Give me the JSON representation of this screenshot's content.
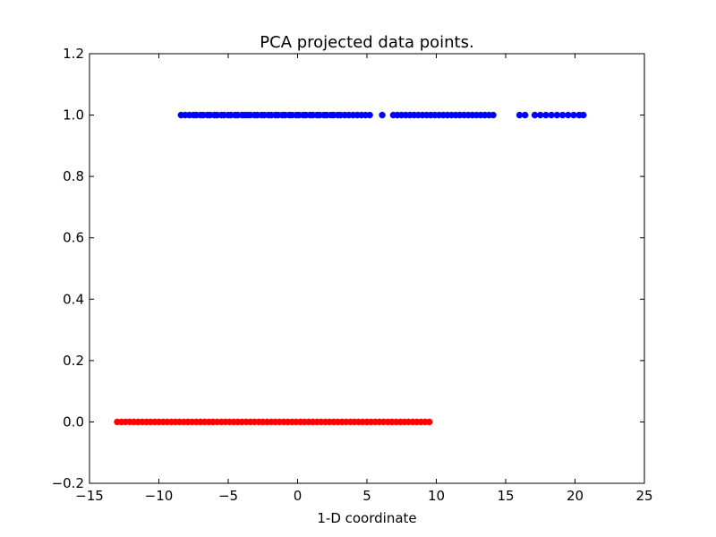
{
  "chart_data": {
    "type": "scatter",
    "title": "PCA projected data points.",
    "xlabel": "1-D coordinate",
    "ylabel": "",
    "xlim": [
      -15,
      25
    ],
    "ylim": [
      -0.2,
      1.2
    ],
    "xticks": [
      -15,
      -10,
      -5,
      0,
      5,
      10,
      15,
      20,
      25
    ],
    "xtick_labels": [
      "−15",
      "−10",
      "−5",
      "0",
      "5",
      "10",
      "15",
      "20",
      "25"
    ],
    "yticks": [
      -0.2,
      0.0,
      0.2,
      0.4,
      0.6,
      0.8,
      1.0,
      1.2
    ],
    "ytick_labels": [
      "−0.2",
      "0.0",
      "0.2",
      "0.4",
      "0.6",
      "0.8",
      "1.0",
      "1.2"
    ],
    "grid": false,
    "series": [
      {
        "color": "#0000ff",
        "y": 1.0,
        "x": [
          -8.4,
          -8.1,
          -7.8,
          -7.5,
          -7.3,
          -7.0,
          -6.8,
          -6.5,
          -6.3,
          -6.0,
          -5.8,
          -5.5,
          -5.3,
          -5.0,
          -4.8,
          -4.5,
          -4.3,
          -4.0,
          -3.8,
          -3.6,
          -3.4,
          -3.1,
          -2.9,
          -2.6,
          -2.4,
          -2.1,
          -1.9,
          -1.6,
          -1.4,
          -1.1,
          -0.9,
          -0.6,
          -0.4,
          -0.1,
          0.1,
          0.4,
          0.6,
          0.9,
          1.1,
          1.4,
          1.6,
          1.9,
          2.1,
          2.4,
          2.6,
          2.9,
          3.1,
          3.4,
          3.7,
          4.0,
          4.3,
          4.6,
          4.9,
          5.2,
          6.1,
          6.9,
          7.2,
          7.5,
          7.8,
          8.1,
          8.4,
          8.7,
          9.0,
          9.3,
          9.6,
          9.9,
          10.2,
          10.5,
          10.8,
          11.1,
          11.4,
          11.7,
          12.0,
          12.3,
          12.6,
          12.9,
          13.2,
          13.5,
          13.8,
          14.1,
          16.0,
          16.4,
          17.1,
          17.5,
          17.9,
          18.3,
          18.7,
          19.1,
          19.5,
          19.9,
          20.3,
          20.6
        ]
      },
      {
        "color": "#ff0000",
        "y": 0.0,
        "x": [
          -13.0,
          -12.7,
          -12.4,
          -12.1,
          -11.8,
          -11.5,
          -11.2,
          -10.9,
          -10.6,
          -10.3,
          -10.0,
          -9.7,
          -9.4,
          -9.1,
          -8.8,
          -8.5,
          -8.2,
          -7.9,
          -7.6,
          -7.3,
          -7.0,
          -6.7,
          -6.4,
          -6.1,
          -5.8,
          -5.5,
          -5.2,
          -4.9,
          -4.6,
          -4.3,
          -4.0,
          -3.7,
          -3.4,
          -3.1,
          -2.8,
          -2.5,
          -2.2,
          -1.9,
          -1.6,
          -1.3,
          -1.0,
          -0.7,
          -0.4,
          -0.1,
          0.2,
          0.5,
          0.8,
          1.1,
          1.4,
          1.7,
          2.0,
          2.3,
          2.6,
          2.9,
          3.2,
          3.5,
          3.8,
          4.1,
          4.4,
          4.7,
          5.0,
          5.3,
          5.6,
          5.9,
          6.2,
          6.5,
          6.8,
          7.1,
          7.4,
          7.7,
          8.0,
          8.3,
          8.6,
          8.9,
          9.2,
          9.5
        ]
      }
    ]
  }
}
